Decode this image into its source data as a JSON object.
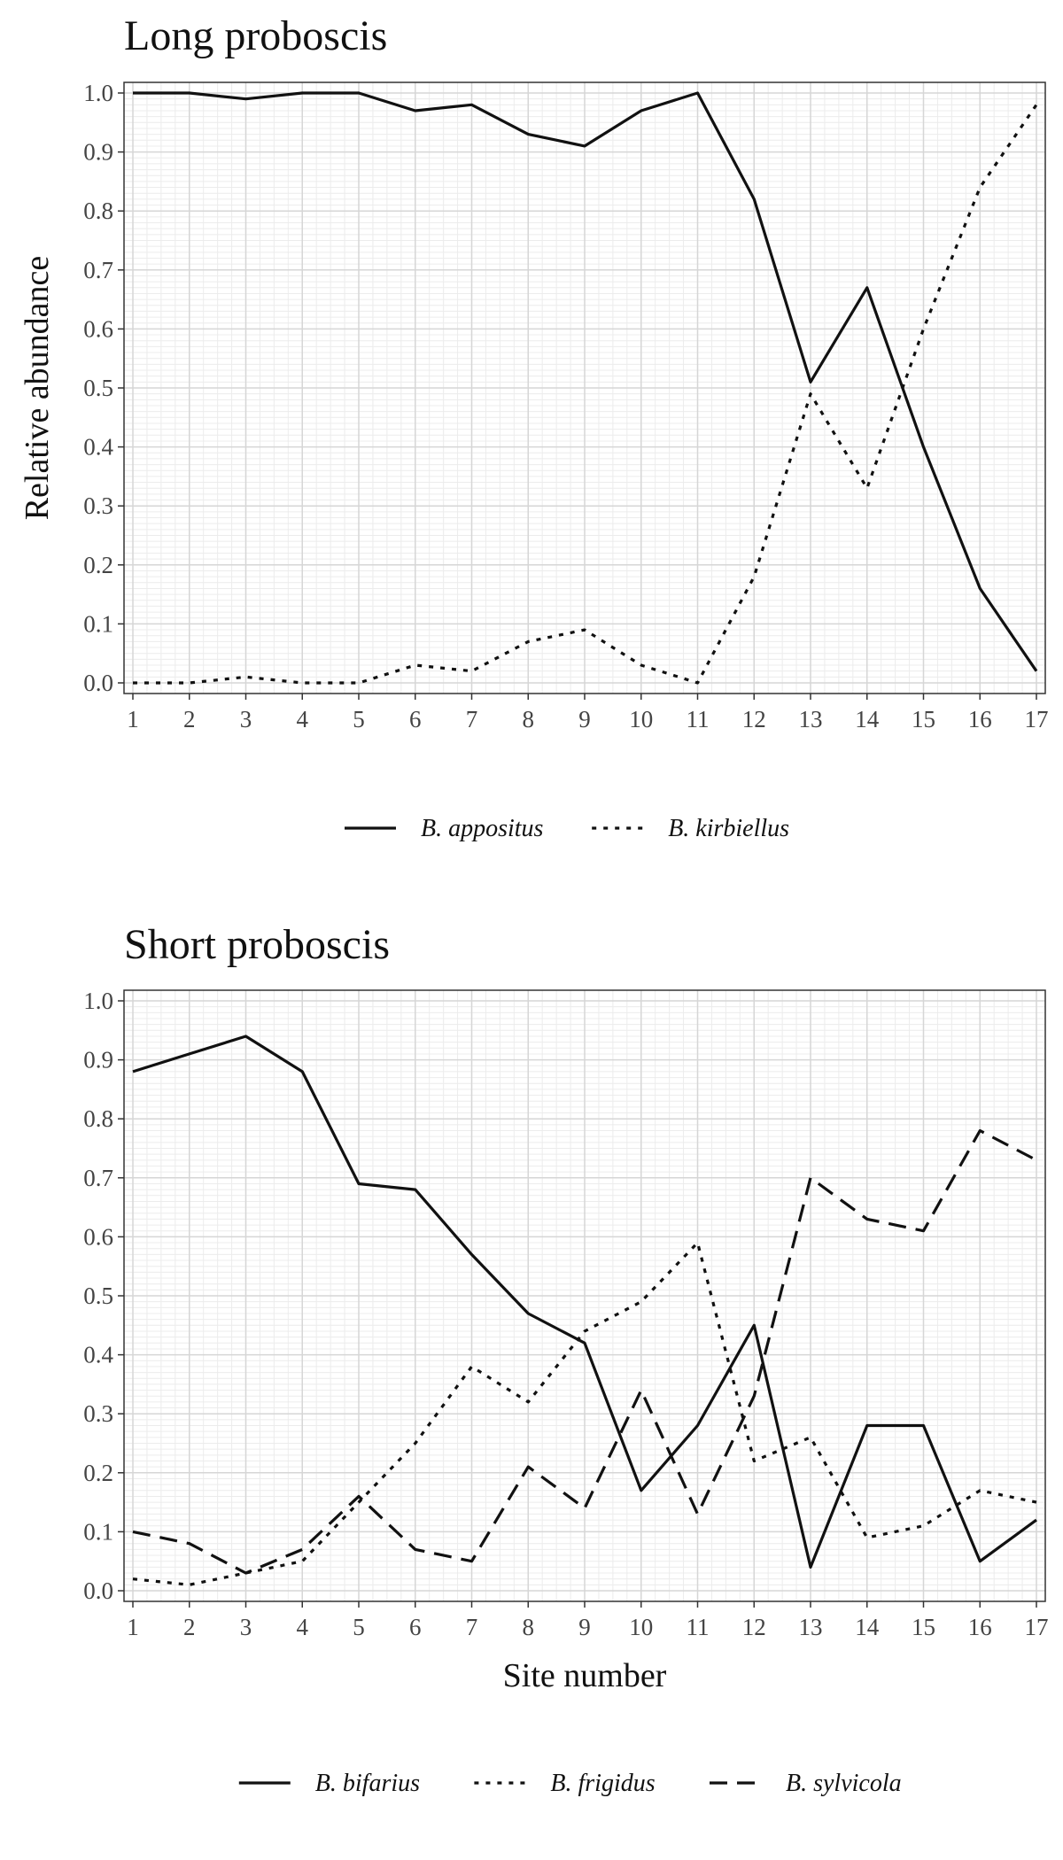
{
  "chart_data": [
    {
      "type": "line",
      "title": "Long proboscis",
      "xlabel": "",
      "ylabel": "Relative abundance",
      "x": [
        1,
        2,
        3,
        4,
        5,
        6,
        7,
        8,
        9,
        10,
        11,
        12,
        13,
        14,
        15,
        16,
        17
      ],
      "xlim": [
        1,
        17
      ],
      "ylim": [
        0,
        1
      ],
      "yticks": [
        "0.0",
        "0.1",
        "0.2",
        "0.3",
        "0.4",
        "0.5",
        "0.6",
        "0.7",
        "0.8",
        "0.9",
        "1.0"
      ],
      "grid": true,
      "legend_position": "bottom",
      "series": [
        {
          "name": "B. appositus",
          "line_style": "solid",
          "values": [
            1.0,
            1.0,
            0.99,
            1.0,
            1.0,
            0.97,
            0.98,
            0.93,
            0.91,
            0.97,
            1.0,
            0.82,
            0.51,
            0.67,
            0.4,
            0.16,
            0.02
          ]
        },
        {
          "name": "B. kirbiellus",
          "line_style": "dotted",
          "values": [
            0.0,
            0.0,
            0.01,
            0.0,
            0.0,
            0.03,
            0.02,
            0.07,
            0.09,
            0.03,
            0.0,
            0.18,
            0.49,
            0.33,
            0.6,
            0.84,
            0.98
          ]
        }
      ]
    },
    {
      "type": "line",
      "title": "Short proboscis",
      "xlabel": "Site number",
      "ylabel": "",
      "x": [
        1,
        2,
        3,
        4,
        5,
        6,
        7,
        8,
        9,
        10,
        11,
        12,
        13,
        14,
        15,
        16,
        17
      ],
      "xlim": [
        1,
        17
      ],
      "ylim": [
        0,
        1
      ],
      "yticks": [
        "0.0",
        "0.1",
        "0.2",
        "0.3",
        "0.4",
        "0.5",
        "0.6",
        "0.7",
        "0.8",
        "0.9",
        "1.0"
      ],
      "grid": true,
      "legend_position": "bottom",
      "series": [
        {
          "name": "B. bifarius",
          "line_style": "solid",
          "values": [
            0.88,
            0.91,
            0.94,
            0.88,
            0.69,
            0.68,
            0.57,
            0.47,
            0.42,
            0.17,
            0.28,
            0.45,
            0.04,
            0.28,
            0.28,
            0.05,
            0.12
          ]
        },
        {
          "name": "B. frigidus",
          "line_style": "dotted",
          "values": [
            0.02,
            0.01,
            0.03,
            0.05,
            0.15,
            0.25,
            0.38,
            0.32,
            0.44,
            0.49,
            0.59,
            0.22,
            0.26,
            0.09,
            0.11,
            0.17,
            0.15
          ]
        },
        {
          "name": "B. sylvicola",
          "line_style": "dashed",
          "values": [
            0.1,
            0.08,
            0.03,
            0.07,
            0.16,
            0.07,
            0.05,
            0.21,
            0.14,
            0.34,
            0.13,
            0.33,
            0.7,
            0.63,
            0.61,
            0.78,
            0.73
          ]
        }
      ]
    }
  ],
  "colors": {
    "line": "#111111",
    "panel_border": "#333333",
    "major_grid": "#d6d6d6",
    "minor_grid": "#ececec"
  }
}
